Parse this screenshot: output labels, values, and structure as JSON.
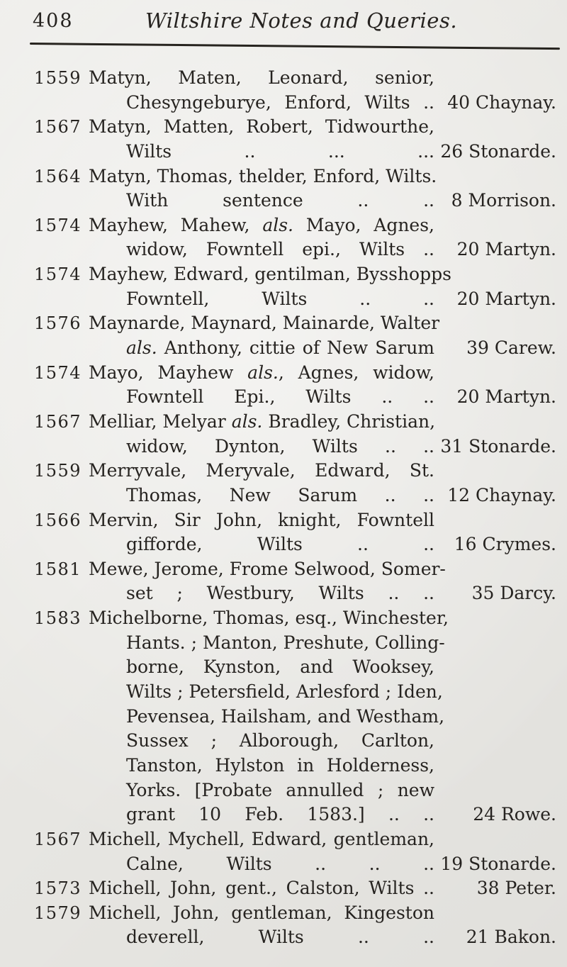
{
  "page": {
    "number": "408",
    "title": "Wiltshire Notes and Queries."
  },
  "colors": {
    "paper": "#e9e8e4",
    "ink": "#262320"
  },
  "entries": [
    {
      "year": "1559",
      "lines": [
        {
          "seg": [
            {
              "t": "Matyn, Maten, Leonard, senior,"
            }
          ]
        },
        {
          "cont": true,
          "seg": [
            {
              "t": "Chesyngeburye, Enford, Wilts .."
            }
          ],
          "ref": "40 Chaynay."
        }
      ]
    },
    {
      "year": "1567",
      "lines": [
        {
          "seg": [
            {
              "t": "Matyn, Matten, Robert, Tidwourthe,"
            }
          ]
        },
        {
          "cont": true,
          "seg": [
            {
              "t": "Wilts .. ... ..."
            }
          ],
          "ref": "26 Stonarde."
        }
      ]
    },
    {
      "year": "1564",
      "lines": [
        {
          "seg": [
            {
              "t": "Matyn, Thomas, thelder, Enford, Wilts."
            }
          ]
        },
        {
          "cont": true,
          "seg": [
            {
              "t": "With sentence .. .."
            }
          ],
          "ref": "8 Morrison."
        }
      ]
    },
    {
      "year": "1574",
      "lines": [
        {
          "seg": [
            {
              "t": "Mayhew, Mahew, "
            },
            {
              "t": "als.",
              "i": true
            },
            {
              "t": " Mayo, Agnes,"
            }
          ]
        },
        {
          "cont": true,
          "seg": [
            {
              "t": "widow, Fowntell epi., Wilts .."
            }
          ],
          "ref": "20 Martyn."
        }
      ]
    },
    {
      "year": "1574",
      "lines": [
        {
          "seg": [
            {
              "t": "Mayhew, Edward, gentilman, Bysshopps"
            }
          ]
        },
        {
          "cont": true,
          "seg": [
            {
              "t": "Fowntell, Wilts .. .."
            }
          ],
          "ref": "20 Martyn."
        }
      ]
    },
    {
      "year": "1576",
      "lines": [
        {
          "seg": [
            {
              "t": "Maynarde, Maynard, Mainarde, Walter"
            }
          ]
        },
        {
          "cont": true,
          "seg": [
            {
              "t": "als.",
              "i": true
            },
            {
              "t": " Anthony, cittie of New Sarum"
            }
          ],
          "ref": "39 Carew."
        }
      ]
    },
    {
      "year": "1574",
      "lines": [
        {
          "seg": [
            {
              "t": "Mayo, Mayhew "
            },
            {
              "t": "als.",
              "i": true
            },
            {
              "t": ", Agnes, widow,"
            }
          ]
        },
        {
          "cont": true,
          "seg": [
            {
              "t": "Fowntell Epi., Wilts .. .."
            }
          ],
          "ref": "20 Martyn."
        }
      ]
    },
    {
      "year": "1567",
      "lines": [
        {
          "seg": [
            {
              "t": "Melliar, Melyar "
            },
            {
              "t": "als.",
              "i": true
            },
            {
              "t": " Bradley, Christian,"
            }
          ]
        },
        {
          "cont": true,
          "seg": [
            {
              "t": "widow, Dynton, Wilts .. .."
            }
          ],
          "ref": "31 Stonarde."
        }
      ]
    },
    {
      "year": "1559",
      "lines": [
        {
          "seg": [
            {
              "t": "Merryvale, Meryvale, Edward, St."
            }
          ]
        },
        {
          "cont": true,
          "seg": [
            {
              "t": "Thomas, New Sarum .. .."
            }
          ],
          "ref": "12 Chaynay."
        }
      ]
    },
    {
      "year": "1566",
      "lines": [
        {
          "seg": [
            {
              "t": "Mervin, Sir John, knight, Fowntell"
            }
          ]
        },
        {
          "cont": true,
          "seg": [
            {
              "t": "gifforde, Wilts .. .."
            }
          ],
          "ref": "16 Crymes."
        }
      ]
    },
    {
      "year": "1581",
      "lines": [
        {
          "seg": [
            {
              "t": "Mewe, Jerome, Frome Selwood, Somer-"
            }
          ]
        },
        {
          "cont": true,
          "seg": [
            {
              "t": "set ; Westbury, Wilts .. .."
            }
          ],
          "ref": "35 Darcy."
        }
      ]
    },
    {
      "year": "1583",
      "lines": [
        {
          "seg": [
            {
              "t": "Michelborne, Thomas, esq., Winchester,"
            }
          ]
        },
        {
          "cont": true,
          "seg": [
            {
              "t": "Hants. ; Manton, Preshute, Colling-"
            }
          ]
        },
        {
          "cont": true,
          "seg": [
            {
              "t": "borne, Kynston, and Wooksey,"
            }
          ]
        },
        {
          "cont": true,
          "seg": [
            {
              "t": "Wilts ; Petersfield, Arlesford ; Iden,"
            }
          ]
        },
        {
          "cont": true,
          "seg": [
            {
              "t": "Pevensea, Hailsham, and Westham,"
            }
          ]
        },
        {
          "cont": true,
          "seg": [
            {
              "t": "Sussex ; Alborough, Carlton,"
            }
          ]
        },
        {
          "cont": true,
          "seg": [
            {
              "t": "Tanston, Hylston in Holderness,"
            }
          ]
        },
        {
          "cont": true,
          "seg": [
            {
              "t": "Yorks. [Probate annulled ; new"
            }
          ]
        },
        {
          "cont": true,
          "seg": [
            {
              "t": "grant 10 Feb. 1583.] .. .."
            }
          ],
          "ref": "24 Rowe."
        }
      ]
    },
    {
      "year": "1567",
      "lines": [
        {
          "seg": [
            {
              "t": "Michell, Mychell, Edward, gentleman,"
            }
          ]
        },
        {
          "cont": true,
          "seg": [
            {
              "t": "Calne, Wilts .. .. .."
            }
          ],
          "ref": "19 Stonarde."
        }
      ]
    },
    {
      "year": "1573",
      "lines": [
        {
          "seg": [
            {
              "t": "Michell, John, gent., Calston, Wilts .."
            }
          ],
          "ref": "38 Peter."
        }
      ]
    },
    {
      "year": "1579",
      "lines": [
        {
          "seg": [
            {
              "t": "Michell, John, gentleman, Kingeston"
            }
          ]
        },
        {
          "cont": true,
          "seg": [
            {
              "t": "deverell, Wilts .. .."
            }
          ],
          "ref": "21 Bakon."
        }
      ]
    }
  ]
}
